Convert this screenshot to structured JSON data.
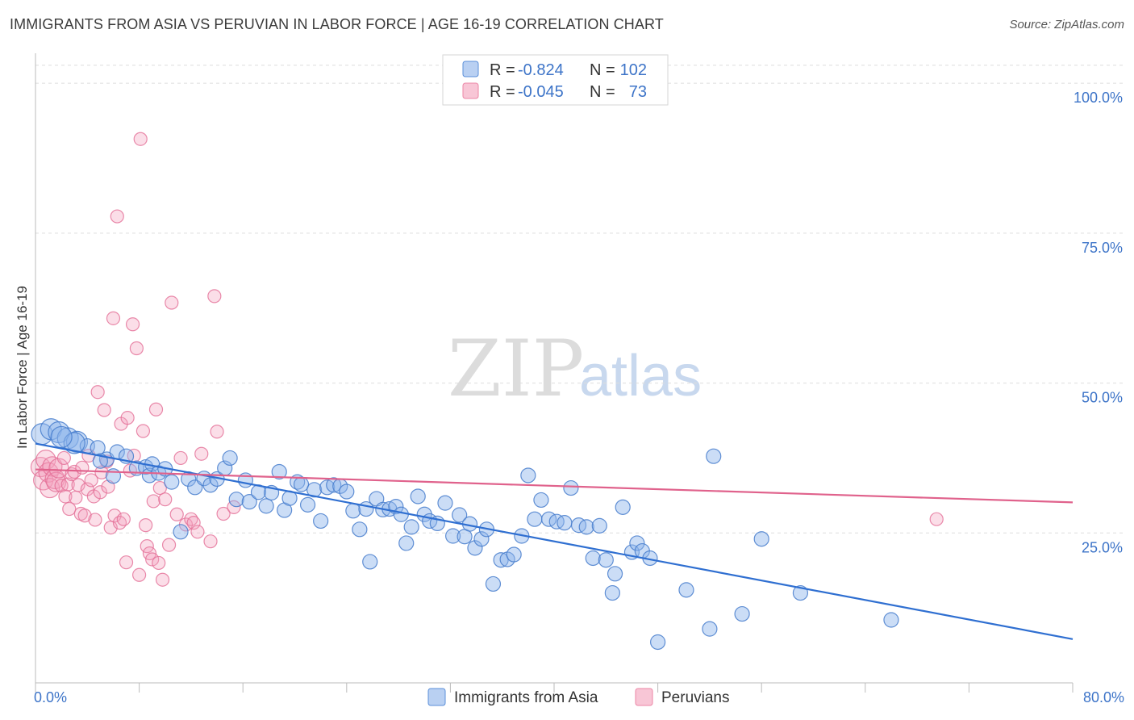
{
  "title": "IMMIGRANTS FROM ASIA VS PERUVIAN IN LABOR FORCE | AGE 16-19 CORRELATION CHART",
  "source": "Source: ZipAtlas.com",
  "watermark": {
    "zip": "ZIP",
    "atlas": "atlas"
  },
  "colors": {
    "blue": "#5b8fd9",
    "blue_line": "#2f6fd1",
    "pink": "#ec86a6",
    "pink_line": "#e0628c",
    "tick": "#3d74c8",
    "grid": "#dddddd"
  },
  "legend": {
    "rows": [
      {
        "r_label": "R = ",
        "r_value": "-0.824",
        "n_label": "N = ",
        "n_value": "102"
      },
      {
        "r_label": "R = ",
        "r_value": "-0.045",
        "n_label": "N = ",
        "n_value": "73"
      }
    ]
  },
  "chart_data": {
    "type": "scatter",
    "xlabel": "",
    "ylabel": "In Labor Force | Age 16-19",
    "xlim": [
      0,
      80
    ],
    "ylim": [
      0,
      105
    ],
    "x_tick_labels": {
      "min": "0.0%",
      "max": "80.0%"
    },
    "y_ticks": [
      {
        "value": 25,
        "label": "25.0%"
      },
      {
        "value": 50,
        "label": "50.0%"
      },
      {
        "value": 75,
        "label": "75.0%"
      },
      {
        "value": 100,
        "label": "100.0%"
      }
    ],
    "grid": true,
    "legend_position": "top-center",
    "series": [
      {
        "name": "Immigrants from Asia",
        "color": "#5b8fd9",
        "trend": {
          "x0": 0,
          "y0": 39.9,
          "x1": 80,
          "y1": 7.3
        },
        "points": [
          [
            0.5,
            41.5
          ],
          [
            1.2,
            42.3
          ],
          [
            1.8,
            41.8
          ],
          [
            2.5,
            40.8
          ],
          [
            3.2,
            40.2
          ],
          [
            4.0,
            39.5
          ],
          [
            4.8,
            39.2
          ],
          [
            5.5,
            37.3
          ],
          [
            6.3,
            38.5
          ],
          [
            7.0,
            37.8
          ],
          [
            7.8,
            35.8
          ],
          [
            8.5,
            36.0
          ],
          [
            8.8,
            34.6
          ],
          [
            9.0,
            36.5
          ],
          [
            9.5,
            35.0
          ],
          [
            10.0,
            35.7
          ],
          [
            10.5,
            33.5
          ],
          [
            11.2,
            25.2
          ],
          [
            11.8,
            34.0
          ],
          [
            12.3,
            32.6
          ],
          [
            13.0,
            34.1
          ],
          [
            13.5,
            33.0
          ],
          [
            14.0,
            34.0
          ],
          [
            14.6,
            35.8
          ],
          [
            15.0,
            37.5
          ],
          [
            15.5,
            30.6
          ],
          [
            16.2,
            33.8
          ],
          [
            16.5,
            30.2
          ],
          [
            17.2,
            31.8
          ],
          [
            17.8,
            29.5
          ],
          [
            18.2,
            31.7
          ],
          [
            18.8,
            35.2
          ],
          [
            19.2,
            28.8
          ],
          [
            19.6,
            30.8
          ],
          [
            20.2,
            33.5
          ],
          [
            20.5,
            33.1
          ],
          [
            21.0,
            29.7
          ],
          [
            21.5,
            32.2
          ],
          [
            22.0,
            27.0
          ],
          [
            22.5,
            32.6
          ],
          [
            23.0,
            33.0
          ],
          [
            23.5,
            32.8
          ],
          [
            24.0,
            31.9
          ],
          [
            24.5,
            28.7
          ],
          [
            25.0,
            25.6
          ],
          [
            25.5,
            29.0
          ],
          [
            25.8,
            20.2
          ],
          [
            26.3,
            30.7
          ],
          [
            26.8,
            28.9
          ],
          [
            27.3,
            29.0
          ],
          [
            27.8,
            29.4
          ],
          [
            28.2,
            28.1
          ],
          [
            28.6,
            23.3
          ],
          [
            29.0,
            26.0
          ],
          [
            29.5,
            31.1
          ],
          [
            30.0,
            28.1
          ],
          [
            30.4,
            27.0
          ],
          [
            31.0,
            26.6
          ],
          [
            31.6,
            30.0
          ],
          [
            32.2,
            24.5
          ],
          [
            32.7,
            28.0
          ],
          [
            33.1,
            24.4
          ],
          [
            33.5,
            26.5
          ],
          [
            33.9,
            22.5
          ],
          [
            34.4,
            24.0
          ],
          [
            34.8,
            25.6
          ],
          [
            35.3,
            16.5
          ],
          [
            35.9,
            20.5
          ],
          [
            36.4,
            20.6
          ],
          [
            36.9,
            21.4
          ],
          [
            37.5,
            24.5
          ],
          [
            38.0,
            34.6
          ],
          [
            38.5,
            27.3
          ],
          [
            39.0,
            30.5
          ],
          [
            39.6,
            27.3
          ],
          [
            40.2,
            26.9
          ],
          [
            40.8,
            26.7
          ],
          [
            41.3,
            32.5
          ],
          [
            41.9,
            26.3
          ],
          [
            42.5,
            26.0
          ],
          [
            43.0,
            20.8
          ],
          [
            43.5,
            26.2
          ],
          [
            44.0,
            20.5
          ],
          [
            44.7,
            18.2
          ],
          [
            45.3,
            29.3
          ],
          [
            46.0,
            21.8
          ],
          [
            46.4,
            23.3
          ],
          [
            46.8,
            22.0
          ],
          [
            47.4,
            20.8
          ],
          [
            48.0,
            6.8
          ],
          [
            44.5,
            15.0
          ],
          [
            50.2,
            15.5
          ],
          [
            52.0,
            9.0
          ],
          [
            52.3,
            37.8
          ],
          [
            54.5,
            11.5
          ],
          [
            56.0,
            24.0
          ],
          [
            59.0,
            15.0
          ],
          [
            66.0,
            10.5
          ],
          [
            5.0,
            37.0
          ],
          [
            6.0,
            34.5
          ],
          [
            3.0,
            40.0
          ],
          [
            2.0,
            41.0
          ]
        ]
      },
      {
        "name": "Peruvians",
        "color": "#ec86a6",
        "trend": {
          "x0": 0,
          "y0": 35.6,
          "x1": 80,
          "y1": 30.1
        },
        "points": [
          [
            0.4,
            36.0
          ],
          [
            0.6,
            33.8
          ],
          [
            0.8,
            37.2
          ],
          [
            1.0,
            35.1
          ],
          [
            1.1,
            32.5
          ],
          [
            1.3,
            36.1
          ],
          [
            1.5,
            34.0
          ],
          [
            1.6,
            33.5
          ],
          [
            1.8,
            35.8
          ],
          [
            2.0,
            32.9
          ],
          [
            2.2,
            37.5
          ],
          [
            2.3,
            31.1
          ],
          [
            2.5,
            33.1
          ],
          [
            2.6,
            29.0
          ],
          [
            2.8,
            34.8
          ],
          [
            3.0,
            35.2
          ],
          [
            3.1,
            30.9
          ],
          [
            3.3,
            33.0
          ],
          [
            3.5,
            28.2
          ],
          [
            3.6,
            35.9
          ],
          [
            3.8,
            27.9
          ],
          [
            4.0,
            32.3
          ],
          [
            4.1,
            37.9
          ],
          [
            4.3,
            33.8
          ],
          [
            4.5,
            31.1
          ],
          [
            4.6,
            27.2
          ],
          [
            4.8,
            48.5
          ],
          [
            5.0,
            31.8
          ],
          [
            5.1,
            35.1
          ],
          [
            5.3,
            45.5
          ],
          [
            5.5,
            36.9
          ],
          [
            5.6,
            32.7
          ],
          [
            5.8,
            25.9
          ],
          [
            6.0,
            60.8
          ],
          [
            6.1,
            27.9
          ],
          [
            6.3,
            77.8
          ],
          [
            6.5,
            26.7
          ],
          [
            6.6,
            43.2
          ],
          [
            6.8,
            27.3
          ],
          [
            7.0,
            20.1
          ],
          [
            7.1,
            44.2
          ],
          [
            7.3,
            35.4
          ],
          [
            7.5,
            59.8
          ],
          [
            7.6,
            37.9
          ],
          [
            7.8,
            55.8
          ],
          [
            8.0,
            18.0
          ],
          [
            8.1,
            90.7
          ],
          [
            8.3,
            42.0
          ],
          [
            8.5,
            26.3
          ],
          [
            8.6,
            22.8
          ],
          [
            8.8,
            21.6
          ],
          [
            9.0,
            20.6
          ],
          [
            9.1,
            30.3
          ],
          [
            9.3,
            45.6
          ],
          [
            9.5,
            20.0
          ],
          [
            9.6,
            32.5
          ],
          [
            9.8,
            17.2
          ],
          [
            10.0,
            30.6
          ],
          [
            10.3,
            23.0
          ],
          [
            10.5,
            63.4
          ],
          [
            10.9,
            28.1
          ],
          [
            11.2,
            37.5
          ],
          [
            11.6,
            26.4
          ],
          [
            12.0,
            27.3
          ],
          [
            12.2,
            26.7
          ],
          [
            12.5,
            25.2
          ],
          [
            12.8,
            38.2
          ],
          [
            13.5,
            23.6
          ],
          [
            13.8,
            64.5
          ],
          [
            14.0,
            41.9
          ],
          [
            14.5,
            28.2
          ],
          [
            15.3,
            29.3
          ],
          [
            69.5,
            27.3
          ]
        ]
      }
    ]
  },
  "bottom_legend": [
    "Immigrants from Asia",
    "Peruvians"
  ]
}
